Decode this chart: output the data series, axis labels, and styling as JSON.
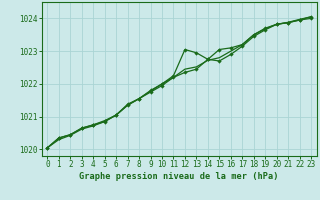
{
  "title": "Graphe pression niveau de la mer (hPa)",
  "bg_color": "#cce9e9",
  "line_color": "#1a6b1a",
  "grid_color": "#aad4d4",
  "xlim": [
    -0.5,
    23.5
  ],
  "ylim": [
    1019.8,
    1024.5
  ],
  "yticks": [
    1020,
    1021,
    1022,
    1023,
    1024
  ],
  "xticks": [
    0,
    1,
    2,
    3,
    4,
    5,
    6,
    7,
    8,
    9,
    10,
    11,
    12,
    13,
    14,
    15,
    16,
    17,
    18,
    19,
    20,
    21,
    22,
    23
  ],
  "series1_x": [
    0,
    1,
    2,
    3,
    4,
    5,
    6,
    7,
    8,
    9,
    10,
    11,
    12,
    13,
    14,
    15,
    16,
    17,
    18,
    19,
    20,
    21,
    22,
    23
  ],
  "series1_y": [
    1020.05,
    1020.35,
    1020.45,
    1020.65,
    1020.75,
    1020.85,
    1021.05,
    1021.35,
    1021.55,
    1021.75,
    1021.95,
    1022.2,
    1022.35,
    1022.45,
    1022.75,
    1023.05,
    1023.1,
    1023.2,
    1023.5,
    1023.7,
    1023.82,
    1023.87,
    1023.95,
    1024.0
  ],
  "series2_x": [
    0,
    1,
    2,
    3,
    4,
    5,
    6,
    7,
    8,
    9,
    10,
    11,
    12,
    13,
    14,
    15,
    16,
    17,
    18,
    19,
    20,
    21,
    22,
    23
  ],
  "series2_y": [
    1020.05,
    1020.35,
    1020.45,
    1020.65,
    1020.75,
    1020.88,
    1021.05,
    1021.38,
    1021.55,
    1021.8,
    1022.0,
    1022.25,
    1023.05,
    1022.95,
    1022.75,
    1022.7,
    1022.9,
    1023.15,
    1023.45,
    1023.65,
    1023.82,
    1023.87,
    1023.95,
    1024.05
  ],
  "series3_x": [
    0,
    1,
    2,
    3,
    4,
    5,
    6,
    7,
    8,
    9,
    10,
    11,
    12,
    13,
    14,
    15,
    16,
    17,
    18,
    19,
    20,
    21,
    22,
    23
  ],
  "series3_y": [
    1020.05,
    1020.3,
    1020.43,
    1020.62,
    1020.72,
    1020.85,
    1021.05,
    1021.35,
    1021.55,
    1021.78,
    1022.0,
    1022.2,
    1022.45,
    1022.52,
    1022.72,
    1022.8,
    1023.0,
    1023.2,
    1023.5,
    1023.68,
    1023.82,
    1023.88,
    1023.97,
    1024.05
  ]
}
